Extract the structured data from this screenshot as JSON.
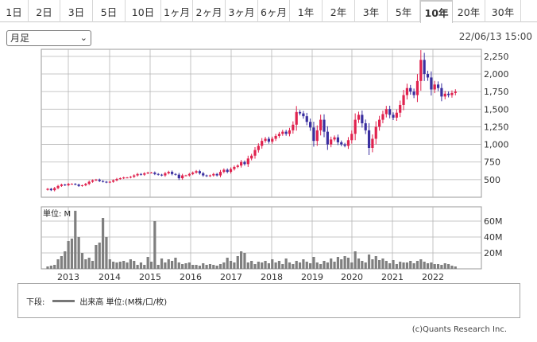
{
  "tabs": [
    "1日",
    "2日",
    "3日",
    "5日",
    "10日",
    "1ヶ月",
    "2ヶ月",
    "3ヶ月",
    "6ヶ月",
    "1年",
    "2年",
    "3年",
    "5年",
    "10年",
    "20年",
    "30年"
  ],
  "active_tab": "10年",
  "period_select": "月足",
  "datetime": "22/06/13 15:00",
  "volume_unit_label": "単位: M",
  "legend": {
    "prefix": "下段:",
    "label": "出来高 単位:(M株/口/枚)"
  },
  "credit": "(c)Quants Research Inc.",
  "colors": {
    "up": "#e0224e",
    "down": "#3a2fa0",
    "volume": "#7f7f7f",
    "grid": "#b5b5b5"
  },
  "chart_data": [
    {
      "type": "candlestick",
      "interval": "monthly",
      "x_tick_labels": [
        "2013",
        "2014",
        "2015",
        "2016",
        "2017",
        "2018",
        "2019",
        "2020",
        "2021",
        "2022"
      ],
      "y_tick_labels": [
        "500",
        "750",
        "1,000",
        "1,250",
        "1,500",
        "1,750",
        "2,000",
        "2,250"
      ],
      "ylim": [
        250,
        2350
      ],
      "start": "2012-07",
      "close": [
        370,
        350,
        380,
        410,
        430,
        420,
        440,
        440,
        430,
        410,
        420,
        440,
        470,
        490,
        500,
        480,
        470,
        460,
        470,
        490,
        510,
        520,
        530,
        530,
        540,
        560,
        580,
        570,
        590,
        600,
        600,
        580,
        570,
        560,
        590,
        610,
        580,
        570,
        520,
        560,
        560,
        580,
        600,
        620,
        590,
        560,
        550,
        560,
        580,
        560,
        610,
        640,
        610,
        650,
        680,
        700,
        750,
        720,
        800,
        840,
        920,
        980,
        1050,
        1080,
        1040,
        1080,
        1120,
        1150,
        1180,
        1150,
        1200,
        1280,
        1460,
        1440,
        1400,
        1320,
        1240,
        1050,
        1200,
        1350,
        1180,
        1000,
        1070,
        1100,
        1030,
        1000,
        980,
        1060,
        1150,
        1350,
        1420,
        1300,
        1200,
        950,
        1080,
        1250,
        1350,
        1430,
        1500,
        1420,
        1380,
        1450,
        1560,
        1700,
        1800,
        1750,
        1700,
        1900,
        2200,
        2000,
        1950,
        1780,
        1850,
        1800,
        1680,
        1720,
        1700,
        1730,
        1750
      ],
      "series": [
        {
          "name": "出来高",
          "unit": "M",
          "y_tick_labels": [
            "20M",
            "40M",
            "60M"
          ],
          "ylim": [
            0,
            78
          ],
          "values": [
            3,
            4,
            5,
            12,
            16,
            22,
            35,
            38,
            73,
            40,
            20,
            12,
            14,
            10,
            30,
            33,
            64,
            40,
            12,
            9,
            8,
            9,
            10,
            8,
            12,
            10,
            5,
            8,
            5,
            15,
            9,
            60,
            5,
            13,
            8,
            12,
            10,
            14,
            8,
            6,
            7,
            8,
            5,
            5,
            4,
            7,
            5,
            6,
            5,
            4,
            6,
            8,
            14,
            10,
            8,
            16,
            22,
            20,
            8,
            10,
            6,
            9,
            8,
            10,
            7,
            12,
            8,
            10,
            6,
            13,
            8,
            6,
            10,
            8,
            12,
            9,
            7,
            15,
            8,
            6,
            10,
            8,
            13,
            9,
            15,
            12,
            16,
            14,
            8,
            22,
            13,
            10,
            8,
            18,
            12,
            16,
            11,
            13,
            10,
            7,
            11,
            6,
            9,
            8,
            8,
            10,
            7,
            10,
            12,
            9,
            7,
            8,
            6,
            6,
            5,
            7,
            6,
            4,
            3
          ]
        }
      ]
    }
  ]
}
